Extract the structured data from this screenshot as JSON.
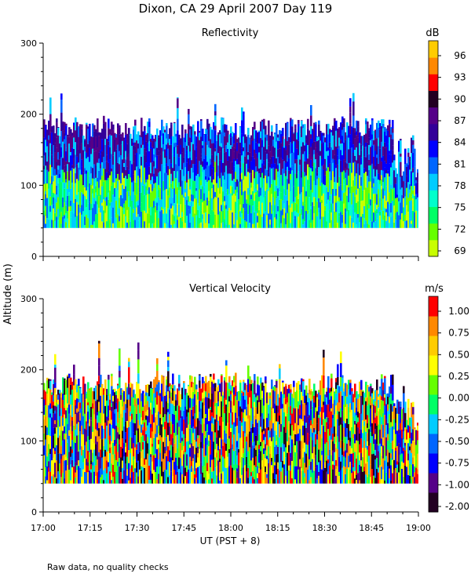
{
  "figure": {
    "title": "Dixon, CA 29 April 2007  Day 119",
    "ylabel": "Altitude (m)",
    "xlabel": "UT  (PST + 8)",
    "footer": "Raw data, no quality checks"
  },
  "chart_data": [
    {
      "type": "heatmap",
      "title": "Reflectivity",
      "xlabel": "UT  (PST + 8)",
      "ylabel": "Altitude (m)",
      "x_range": [
        "17:00",
        "19:00"
      ],
      "xticks": [
        "17:00",
        "17:15",
        "17:30",
        "17:45",
        "18:00",
        "18:15",
        "18:30",
        "18:45",
        "19:00"
      ],
      "ylim": [
        0,
        300
      ],
      "yticks": [
        0,
        100,
        200,
        300
      ],
      "data_altitude_range_m": [
        40,
        260
      ],
      "colorbar": {
        "unit": "dB",
        "labels": [
          "69",
          "72",
          "75",
          "78",
          "81",
          "84",
          "87",
          "90",
          "93",
          "96"
        ],
        "colors": [
          "#c8ff00",
          "#66ff00",
          "#00ff66",
          "#00ffcc",
          "#00ccff",
          "#0066ff",
          "#0000ff",
          "#330099",
          "#550088",
          "#220022",
          "#ff0000",
          "#ff8800",
          "#ffcc00"
        ]
      }
    },
    {
      "type": "heatmap",
      "title": "Vertical Velocity",
      "xlabel": "UT  (PST + 8)",
      "ylabel": "Altitude (m)",
      "x_range": [
        "17:00",
        "19:00"
      ],
      "xticks": [
        "17:00",
        "17:15",
        "17:30",
        "17:45",
        "18:00",
        "18:15",
        "18:30",
        "18:45",
        "19:00"
      ],
      "ylim": [
        0,
        300
      ],
      "yticks": [
        0,
        100,
        200,
        300
      ],
      "data_altitude_range_m": [
        40,
        260
      ],
      "colorbar": {
        "unit": "m/s",
        "labels": [
          "-2.00",
          "-1.00",
          "-0.75",
          "-0.50",
          "-0.25",
          "0.00",
          "0.25",
          "0.50",
          "0.75",
          "1.00"
        ],
        "colors": [
          "#220022",
          "#550088",
          "#0000ff",
          "#0066ff",
          "#00ccff",
          "#00ff66",
          "#66ff00",
          "#ffff00",
          "#ffcc00",
          "#ff8800",
          "#ff0000"
        ]
      }
    }
  ]
}
